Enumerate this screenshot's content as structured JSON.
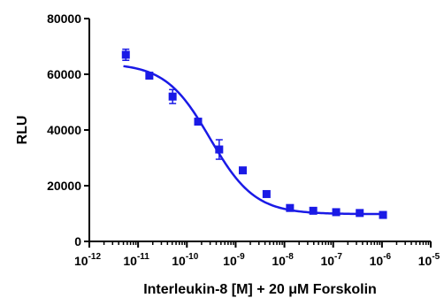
{
  "chart_data": {
    "type": "scatter",
    "xlabel": "Interleukin-8 [M] + 20 μM Forskolin",
    "ylabel": "RLU",
    "x_scale": "log",
    "xlim": [
      1e-12,
      1e-05
    ],
    "ylim": [
      0,
      80000
    ],
    "x_ticks": [
      {
        "base": "10",
        "exp": "-12"
      },
      {
        "base": "10",
        "exp": "-11"
      },
      {
        "base": "10",
        "exp": "-10"
      },
      {
        "base": "10",
        "exp": "-9"
      },
      {
        "base": "10",
        "exp": "-8"
      },
      {
        "base": "10",
        "exp": "-7"
      },
      {
        "base": "10",
        "exp": "-6"
      },
      {
        "base": "10",
        "exp": "-5"
      }
    ],
    "y_ticks": [
      "0",
      "20000",
      "40000",
      "60000",
      "80000"
    ],
    "grid": false,
    "series": [
      {
        "color": "#1a1ae6",
        "marker": "square",
        "x": [
          5.6e-12,
          1.7e-11,
          5.1e-11,
          1.7e-10,
          4.6e-10,
          1.4e-09,
          4.3e-09,
          1.3e-08,
          3.9e-08,
          1.15e-07,
          3.5e-07,
          1.05e-06
        ],
        "y": [
          67000,
          59500,
          52000,
          43000,
          33000,
          25500,
          17000,
          12000,
          11000,
          10500,
          10200,
          9500
        ],
        "err": [
          2000,
          700,
          2500,
          800,
          3500,
          900,
          500,
          300,
          300,
          300,
          300,
          300
        ]
      }
    ],
    "fit": {
      "color": "#1a1ae6",
      "model": "4PL",
      "top": 64000,
      "bottom": 9800,
      "ec50": 3e-10,
      "hill": 0.95,
      "x_range": [
        5e-12,
        1.05e-06
      ]
    }
  }
}
